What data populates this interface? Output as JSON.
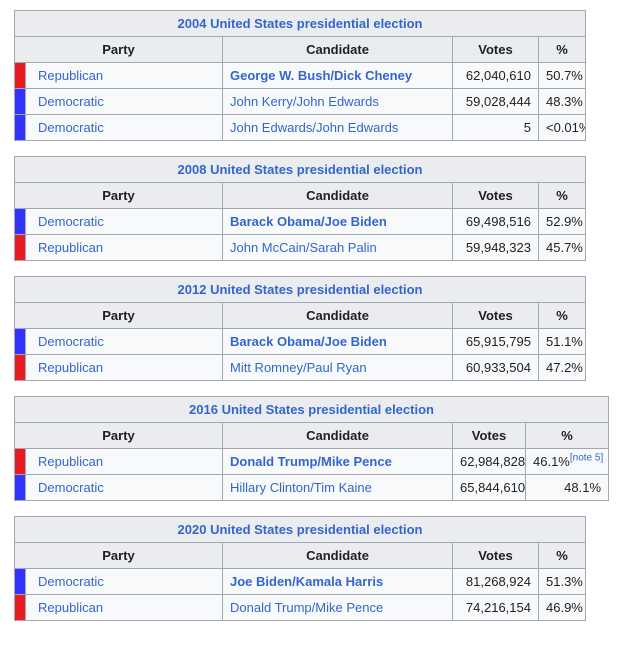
{
  "colors": {
    "republican": "#e81b23",
    "democratic": "#3333ff",
    "link_blue": "#3366cc",
    "header_bg": "#eaecf0",
    "cell_bg": "#f8f9fa",
    "border": "#a2a9b1"
  },
  "columns": {
    "party": "Party",
    "candidate": "Candidate",
    "votes": "Votes",
    "percent": "%"
  },
  "tables": [
    {
      "title": "2004 United States presidential election",
      "wide_percent": false,
      "rows": [
        {
          "party": "Republican",
          "party_color": "republican",
          "candidate": "George W. Bush/Dick Cheney",
          "winner": true,
          "votes": "62,040,610",
          "percent": "50.7%",
          "note": ""
        },
        {
          "party": "Democratic",
          "party_color": "democratic",
          "candidate": "John Kerry/John Edwards",
          "winner": false,
          "votes": "59,028,444",
          "percent": "48.3%",
          "note": ""
        },
        {
          "party": "Democratic",
          "party_color": "democratic",
          "candidate": "John Edwards/John Edwards",
          "winner": false,
          "votes": "5",
          "percent": "<0.01%",
          "note": ""
        }
      ]
    },
    {
      "title": "2008 United States presidential election",
      "wide_percent": false,
      "rows": [
        {
          "party": "Democratic",
          "party_color": "democratic",
          "candidate": "Barack Obama/Joe Biden",
          "winner": true,
          "votes": "69,498,516",
          "percent": "52.9%",
          "note": ""
        },
        {
          "party": "Republican",
          "party_color": "republican",
          "candidate": "John McCain/Sarah Palin",
          "winner": false,
          "votes": "59,948,323",
          "percent": "45.7%",
          "note": ""
        }
      ]
    },
    {
      "title": "2012 United States presidential election",
      "wide_percent": false,
      "rows": [
        {
          "party": "Democratic",
          "party_color": "democratic",
          "candidate": "Barack Obama/Joe Biden",
          "winner": true,
          "votes": "65,915,795",
          "percent": "51.1%",
          "note": ""
        },
        {
          "party": "Republican",
          "party_color": "republican",
          "candidate": "Mitt Romney/Paul Ryan",
          "winner": false,
          "votes": "60,933,504",
          "percent": "47.2%",
          "note": ""
        }
      ]
    },
    {
      "title": "2016 United States presidential election",
      "wide_percent": true,
      "rows": [
        {
          "party": "Republican",
          "party_color": "republican",
          "candidate": "Donald Trump/Mike Pence",
          "winner": true,
          "votes": "62,984,828",
          "percent": "46.1%",
          "note": "[note 5]"
        },
        {
          "party": "Democratic",
          "party_color": "democratic",
          "candidate": "Hillary Clinton/Tim Kaine",
          "winner": false,
          "votes": "65,844,610",
          "percent": "48.1%",
          "note": ""
        }
      ]
    },
    {
      "title": "2020 United States presidential election",
      "wide_percent": false,
      "rows": [
        {
          "party": "Democratic",
          "party_color": "democratic",
          "candidate": "Joe Biden/Kamala Harris",
          "winner": true,
          "votes": "81,268,924",
          "percent": "51.3%",
          "note": ""
        },
        {
          "party": "Republican",
          "party_color": "republican",
          "candidate": "Donald Trump/Mike Pence",
          "winner": false,
          "votes": "74,216,154",
          "percent": "46.9%",
          "note": ""
        }
      ]
    }
  ]
}
